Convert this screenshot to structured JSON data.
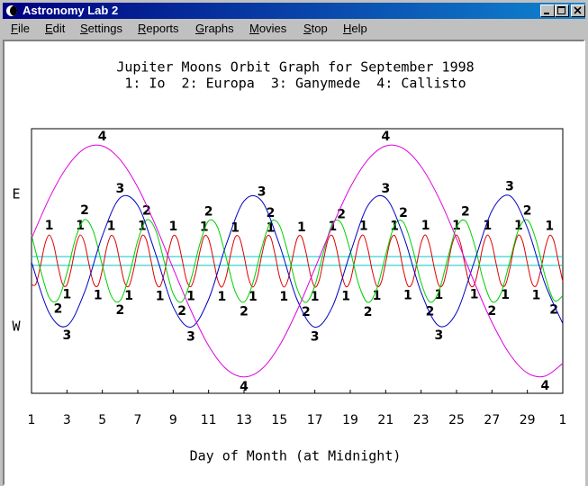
{
  "window": {
    "title": "Astronomy Lab 2"
  },
  "menu": [
    "File",
    "Edit",
    "Settings",
    "Reports",
    "Graphs",
    "Movies",
    "Stop",
    "Help"
  ],
  "chart_data": {
    "type": "line",
    "title": "Jupiter Moons Orbit Graph for September 1998",
    "subtitle": "1: Io  2: Europa  3: Ganymede  4: Callisto",
    "x_label": "Day of Month (at Midnight)",
    "y_labels": [
      "E",
      "W"
    ],
    "xlim": [
      1,
      31
    ],
    "ylim": [
      -30,
      30
    ],
    "xticks": [
      1,
      3,
      5,
      7,
      9,
      11,
      13,
      15,
      17,
      19,
      21,
      23,
      25,
      27,
      29,
      {
        "value": 31,
        "label": "1"
      }
    ],
    "jupiter_limb": [
      1,
      -1
    ],
    "jupiter_limb_color": "#00c8c8",
    "series": [
      {
        "label": "1",
        "color": "#e00000",
        "x": [
          1,
          1.25,
          1.5,
          1.75,
          2,
          2.25,
          2.5,
          2.75,
          3,
          3.25,
          3.5,
          3.75,
          4,
          4.25,
          4.5,
          4.75,
          5,
          5.25,
          5.5,
          5.75,
          6,
          6.25,
          6.5,
          6.75,
          7,
          7.25,
          7.5,
          7.75,
          8,
          8.25,
          8.5,
          8.75,
          9,
          9.25,
          9.5,
          9.75,
          10,
          10.25,
          10.5,
          10.75,
          11,
          11.25,
          11.5,
          11.75,
          12,
          12.25,
          12.5,
          12.75,
          13,
          13.25,
          13.5,
          13.75,
          14,
          14.25,
          14.5,
          14.75,
          15,
          15.25,
          15.5,
          15.75,
          16,
          16.25,
          16.5,
          16.75,
          17,
          17.25,
          17.5,
          17.75,
          18,
          18.25,
          18.5,
          18.75,
          19,
          19.25,
          19.5,
          19.75,
          20,
          20.25,
          20.5,
          20.75,
          21,
          21.25,
          21.5,
          21.75,
          22,
          22.25,
          22.5,
          22.75,
          23,
          23.25,
          23.5,
          23.75,
          24,
          24.25,
          24.5,
          24.75,
          25,
          25.25,
          25.5,
          25.75,
          26,
          26.25,
          26.5,
          26.75,
          27,
          27.25,
          27.5,
          27.75,
          28,
          28.25,
          28.5,
          28.75,
          29,
          29.25,
          29.5,
          29.75,
          30,
          30.25,
          30.5,
          30.75,
          31
        ],
        "values": [
          -5.4,
          -5.2,
          -1.2,
          3.7,
          5.9,
          3.7,
          -1.2,
          -5.2,
          -5.4,
          -1.6,
          3.4,
          5.9,
          4.0,
          -0.8,
          -5.0,
          -5.6,
          -2.0,
          3.1,
          5.8,
          4.3,
          -0.4,
          -4.8,
          -5.7,
          -2.3,
          2.7,
          5.8,
          4.6,
          0.0,
          -4.6,
          -5.8,
          -2.7,
          2.4,
          5.7,
          4.8,
          0.4,
          -4.3,
          -5.8,
          -3.0,
          2.0,
          5.6,
          5.0,
          0.8,
          -4.1,
          -5.9,
          -3.4,
          1.6,
          5.4,
          5.2,
          1.2,
          -3.8,
          -5.9,
          -3.7,
          1.3,
          5.3,
          5.4,
          1.5,
          -3.5,
          -5.9,
          -4.0,
          0.9,
          5.1,
          5.5,
          1.9,
          -3.1,
          -5.9,
          -4.3,
          0.5,
          4.9,
          5.7,
          2.3,
          -2.8,
          -5.8,
          -4.5,
          0.1,
          4.6,
          5.8,
          2.6,
          -2.4,
          -5.7,
          -4.8,
          -0.3,
          4.4,
          5.8,
          3.0,
          -2.1,
          -5.6,
          -5.0,
          -0.7,
          4.1,
          5.9,
          3.3,
          -1.7,
          -5.5,
          -5.2,
          -1.1,
          3.8,
          5.9,
          3.6,
          -1.3,
          -5.3,
          -5.4,
          -1.5,
          3.5,
          5.9,
          3.9,
          -0.9,
          -5.1,
          -5.5,
          -1.9,
          3.2,
          5.9,
          4.2,
          -0.5,
          -4.9,
          -5.6,
          -2.2,
          2.8,
          5.8,
          4.5,
          -0.1,
          -4.7
        ]
      },
      {
        "label": "2",
        "color": "#00d000",
        "x": [
          1,
          1.5,
          2,
          2.5,
          3,
          3.5,
          4,
          4.5,
          5,
          5.5,
          6,
          6.5,
          7,
          7.5,
          8,
          8.5,
          9,
          9.5,
          10,
          10.5,
          11,
          11.5,
          12,
          12.5,
          13,
          13.5,
          14,
          14.5,
          15,
          15.5,
          16,
          16.5,
          17,
          17.5,
          18,
          18.5,
          19,
          19.5,
          20,
          20.5,
          21,
          21.5,
          22,
          22.5,
          23,
          23.5,
          24,
          24.5,
          25,
          25.5,
          26,
          26.5,
          27,
          27.5,
          28,
          28.5,
          29,
          29.5,
          30,
          30.5,
          31
        ],
        "values": [
          5.9,
          -1.9,
          -8.3,
          -8.7,
          -2.7,
          5.3,
          9.4,
          6.6,
          -1.0,
          -7.9,
          -9.0,
          -3.5,
          4.6,
          9.3,
          7.1,
          -0.2,
          -7.4,
          -9.2,
          -4.2,
          3.8,
          9.1,
          7.7,
          0.6,
          -6.9,
          -9.3,
          -5.0,
          3.0,
          8.8,
          8.1,
          1.5,
          -6.3,
          -9.4,
          -5.6,
          2.2,
          8.5,
          8.5,
          2.3,
          -5.6,
          -9.4,
          -6.3,
          1.4,
          8.1,
          8.8,
          3.1,
          -4.9,
          -9.3,
          -6.9,
          0.6,
          7.6,
          9.1,
          3.9,
          -4.2,
          -9.2,
          -7.4,
          -0.2,
          7.1,
          9.3,
          4.6,
          -3.4,
          -8.9,
          -7.9
        ]
      },
      {
        "label": "3",
        "color": "#0000c0",
        "x": [
          1,
          2,
          3,
          4,
          5,
          6,
          7,
          8,
          9,
          10,
          11,
          12,
          13,
          14,
          15,
          16,
          17,
          18,
          19,
          20,
          21,
          22,
          23,
          24,
          25,
          26,
          27,
          28,
          29,
          30,
          31
        ],
        "values": [
          -0.3,
          -11.8,
          -14.7,
          -7.0,
          5.7,
          14.3,
          12.6,
          1.7,
          -10.4,
          -15.0,
          -8.7,
          3.8,
          13.6,
          13.6,
          3.7,
          -8.8,
          -15.0,
          -10.3,
          1.8,
          12.6,
          14.3,
          5.7,
          -7.1,
          -14.7,
          -11.7,
          -0.2,
          11.4,
          14.8,
          7.5,
          -5.2,
          -14.2
        ]
      },
      {
        "label": "4",
        "color": "#e000e0",
        "x": [
          1,
          2,
          3,
          4,
          5,
          6,
          7,
          8,
          9,
          10,
          11,
          12,
          13,
          14,
          15,
          16,
          17,
          18,
          19,
          20,
          21,
          22,
          23,
          24,
          25,
          26,
          27,
          28,
          29,
          30,
          31
        ],
        "values": [
          5.1,
          14.2,
          21.3,
          25.5,
          26.1,
          23.0,
          16.7,
          8.1,
          -1.7,
          -11.2,
          -19.2,
          -24.5,
          -26.3,
          -24.5,
          -19.2,
          -11.2,
          -1.7,
          8.0,
          16.7,
          23.0,
          26.1,
          25.5,
          21.4,
          14.3,
          5.1,
          -4.8,
          -13.9,
          -21.1,
          -25.4,
          -26.1,
          -23.2
        ]
      }
    ]
  }
}
